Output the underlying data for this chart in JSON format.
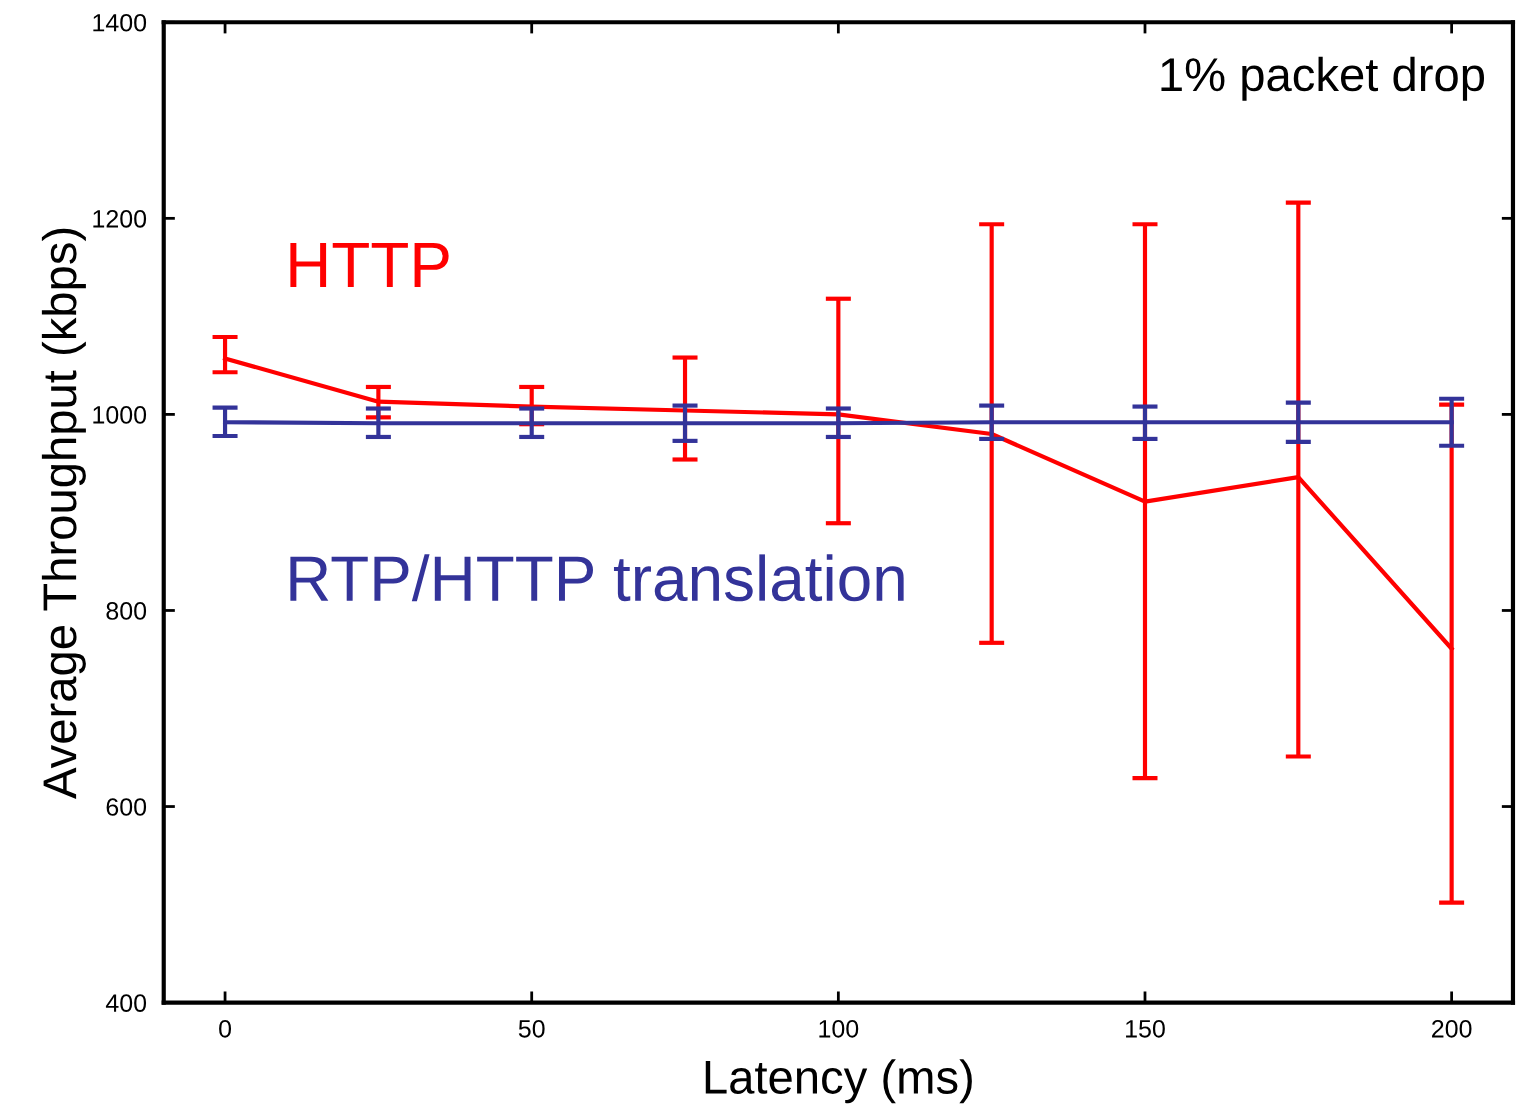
{
  "chart_data": {
    "type": "line",
    "xlabel": "Latency (ms)",
    "ylabel": "Average Throughput (kbps)",
    "x": [
      0,
      25,
      50,
      75,
      100,
      125,
      150,
      175,
      200
    ],
    "series": [
      {
        "name": "HTTP",
        "color": "#ff0000",
        "values": [
          1057,
          1013,
          1008,
          1004,
          1000,
          980,
          911,
          936,
          761
        ],
        "errors": [
          [
            1043,
            1079
          ],
          [
            997,
            1028
          ],
          [
            990,
            1028
          ],
          [
            954,
            1058
          ],
          [
            889,
            1118
          ],
          [
            767,
            1194
          ],
          [
            629,
            1194
          ],
          [
            651,
            1216
          ],
          [
            502,
            1010
          ]
        ]
      },
      {
        "name": "RTP/HTTP translation",
        "color": "#333399",
        "values": [
          992,
          991,
          991,
          991,
          991,
          992,
          992,
          992,
          992
        ],
        "errors": [
          [
            978,
            1007
          ],
          [
            977,
            1006
          ],
          [
            977,
            1006
          ],
          [
            973,
            1009
          ],
          [
            977,
            1006
          ],
          [
            975,
            1009
          ],
          [
            975,
            1008
          ],
          [
            972,
            1012
          ],
          [
            968,
            1016
          ]
        ]
      }
    ],
    "xlim": [
      -10,
      210
    ],
    "ylim": [
      400,
      1400
    ],
    "xticks": [
      0,
      50,
      100,
      150,
      200
    ],
    "yticks": [
      400,
      600,
      800,
      1000,
      1200,
      1400
    ],
    "annotations": [
      "1% packet drop"
    ],
    "grid": false,
    "legend": false,
    "marker": "none",
    "line_style": "solid"
  }
}
